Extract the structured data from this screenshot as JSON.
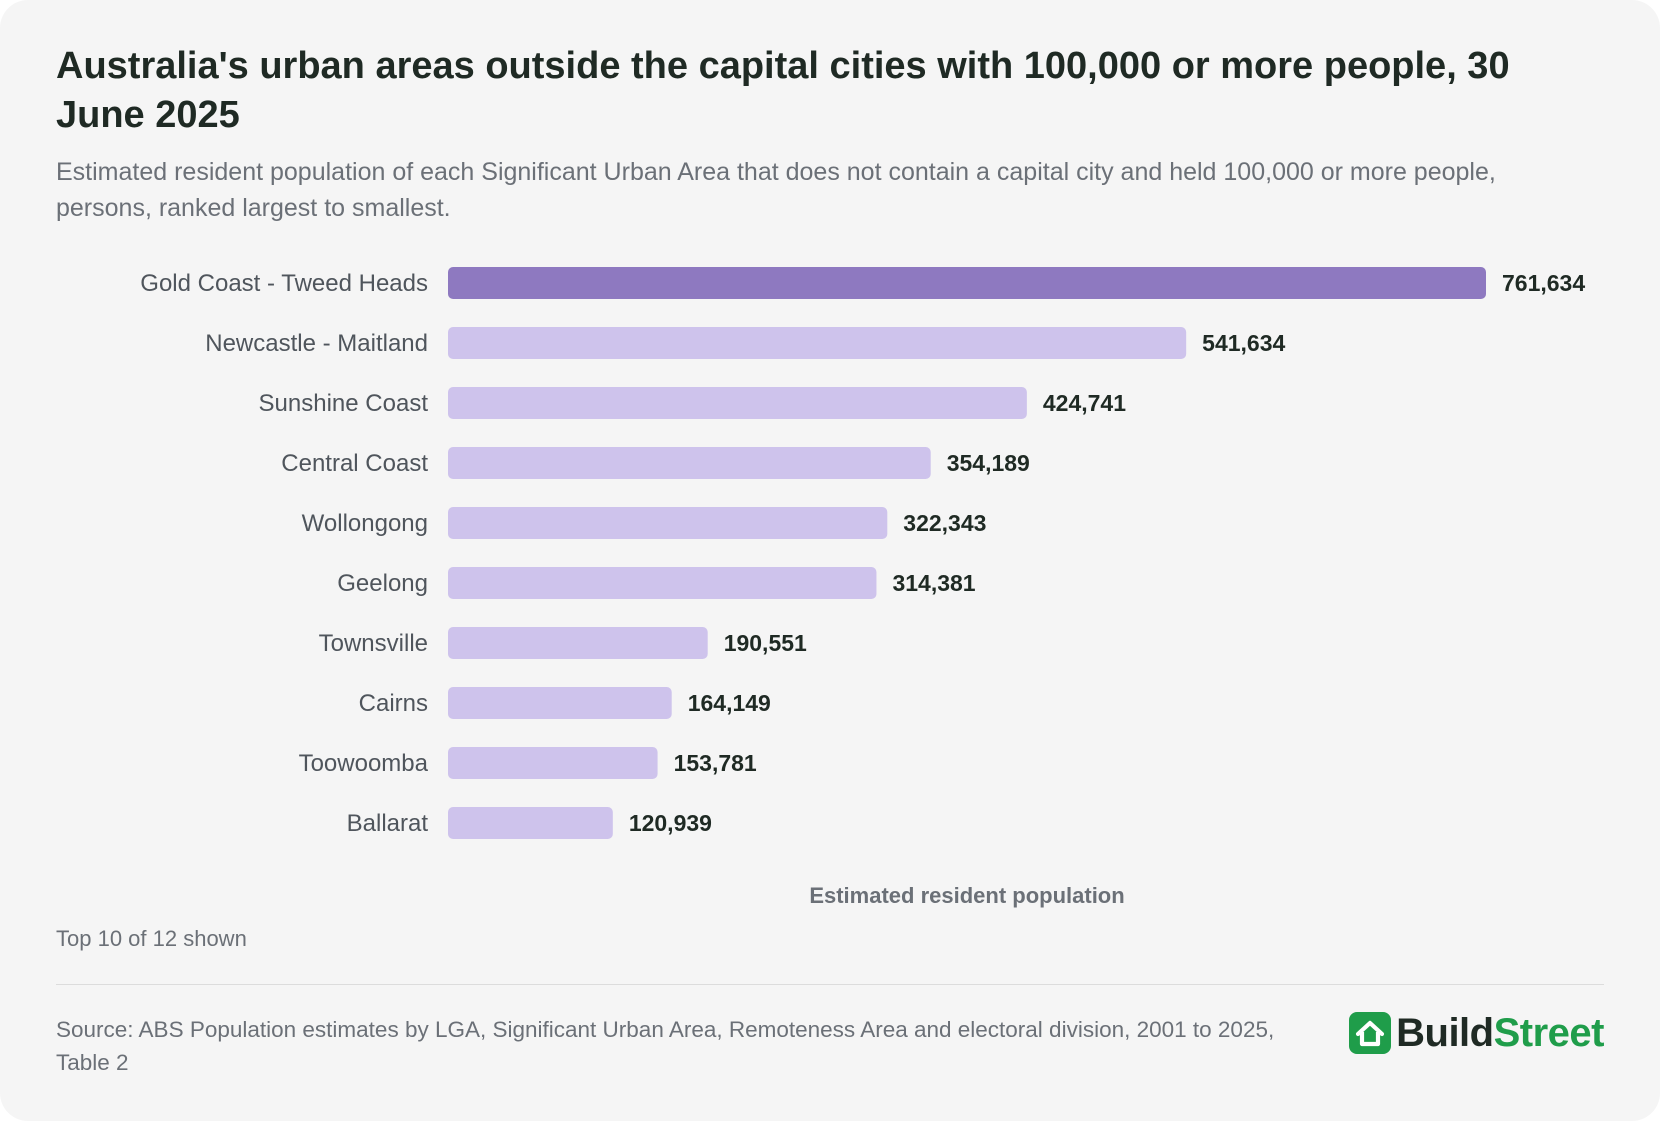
{
  "title": "Australia's urban areas outside the capital cities with 100,000 or more people, 30 June 2025",
  "subtitle": "Estimated resident population of each Significant Urban Area that does not contain a capital city and held 100,000 or more people, persons, ranked largest to smallest.",
  "footnote": "Top 10 of 12 shown",
  "source": "Source: ABS Population estimates by LGA, Significant Urban Area, Remoteness Area and electoral division, 2001 to 2025, Table 2",
  "brand": {
    "part1": "Build",
    "part2": "Street",
    "icon": "house-icon"
  },
  "colors": {
    "highlight_bar": "#8e79c0",
    "bar": "#cec3ec",
    "brand_green": "#1f9d4a",
    "brand_dark": "#1f2a24",
    "background": "#f5f5f5"
  },
  "chart_data": {
    "type": "bar",
    "orientation": "horizontal",
    "categories": [
      "Gold Coast - Tweed Heads",
      "Newcastle - Maitland",
      "Sunshine Coast",
      "Central Coast",
      "Wollongong",
      "Geelong",
      "Townsville",
      "Cairns",
      "Toowoomba",
      "Ballarat"
    ],
    "values": [
      761634,
      541634,
      424741,
      354189,
      322343,
      314381,
      190551,
      164149,
      153781,
      120939
    ],
    "value_labels": [
      "761,634",
      "541,634",
      "424,741",
      "354,189",
      "322,343",
      "314,381",
      "190,551",
      "164,149",
      "153,781",
      "120,939"
    ],
    "highlight_index": 0,
    "xlabel": "Estimated resident population",
    "ylabel": "",
    "xlim": [
      0,
      761634
    ],
    "grid": false,
    "legend": false
  }
}
